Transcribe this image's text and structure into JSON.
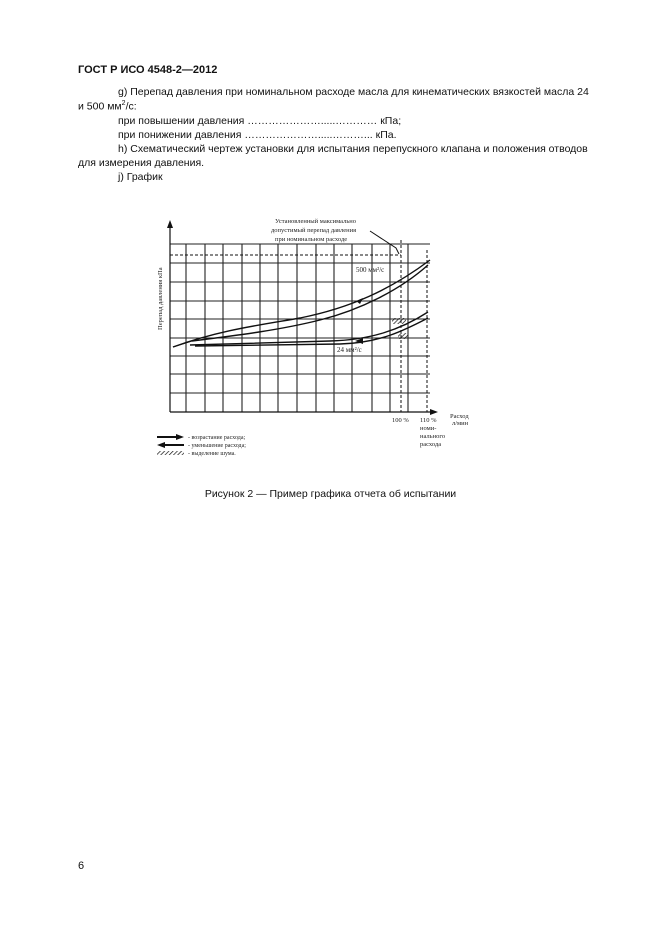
{
  "header": "ГОСТ Р ИСО 4548-2—2012",
  "body": {
    "g_line1": "g) Перепад давления при номинальном расходе масла для кинематических вязкостей масла 24",
    "g_line2_pre": "и 500 мм",
    "g_line2_sup": "2",
    "g_line2_post": "/с:",
    "rise": "при повышении давления ………………….....………… кПа;",
    "fall": "при понижении давления ………………….....………... кПа.",
    "h_line1": "h) Схематический чертеж установки для испытания перепускного клапана и положения отводов",
    "h_line2": "для измерения давления.",
    "j": "j) График"
  },
  "figure": {
    "ylabel": "Перепад давления  кПа",
    "annotation": [
      "Установленный максимально",
      "допустимый перепад давления",
      "при номинальном расходе"
    ],
    "curve_500": "500 мм²/с",
    "curve_24": "24 мм²/с",
    "tick_100": "100 %",
    "tick_110": "110 %",
    "tick_110_note": [
      "номи-",
      "нального",
      "расхода"
    ],
    "xlabel": [
      "Расход",
      "л/мин"
    ],
    "legend": [
      "- возрастание расхода;",
      "- уменьшение расхода;",
      "- выделение шума."
    ],
    "caption": "Рисунок 2 — Пример графика отчета об испытании"
  },
  "page_number": "6"
}
